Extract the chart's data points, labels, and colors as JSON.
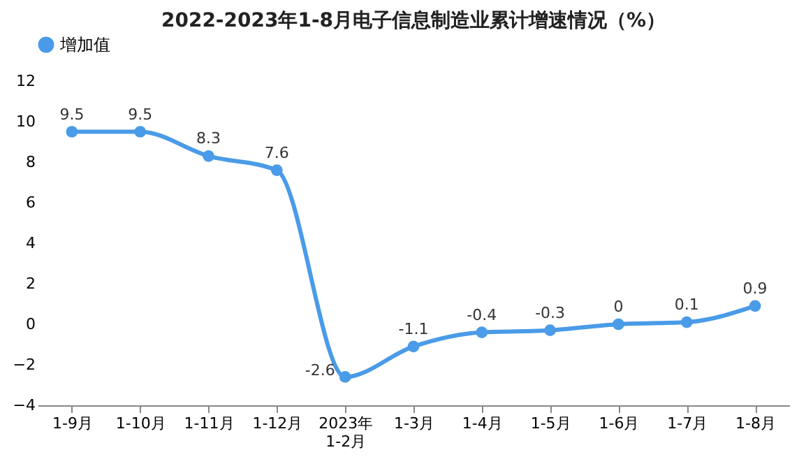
{
  "chart_data": {
    "type": "line",
    "title": "2022-2023年1-8月电子信息制造业累计增速情况（%）",
    "categories": [
      "1-9月",
      "1-10月",
      "1-11月",
      "1-12月",
      "2023年\n1-2月",
      "1-3月",
      "1-4月",
      "1-5月",
      "1-6月",
      "1-7月",
      "1-8月"
    ],
    "series": [
      {
        "name": "增加值",
        "color": "#4a9be8",
        "values": [
          9.5,
          9.5,
          8.3,
          7.6,
          -2.6,
          -1.1,
          -0.4,
          -0.3,
          0,
          0.1,
          0.9
        ]
      }
    ],
    "ylim": [
      -4,
      12
    ],
    "yticks": [
      -4,
      -2,
      0,
      2,
      4,
      6,
      8,
      10,
      12
    ],
    "grid": false,
    "legend": "top",
    "marker": "circle",
    "line_style": "solid",
    "data_labels": true
  }
}
